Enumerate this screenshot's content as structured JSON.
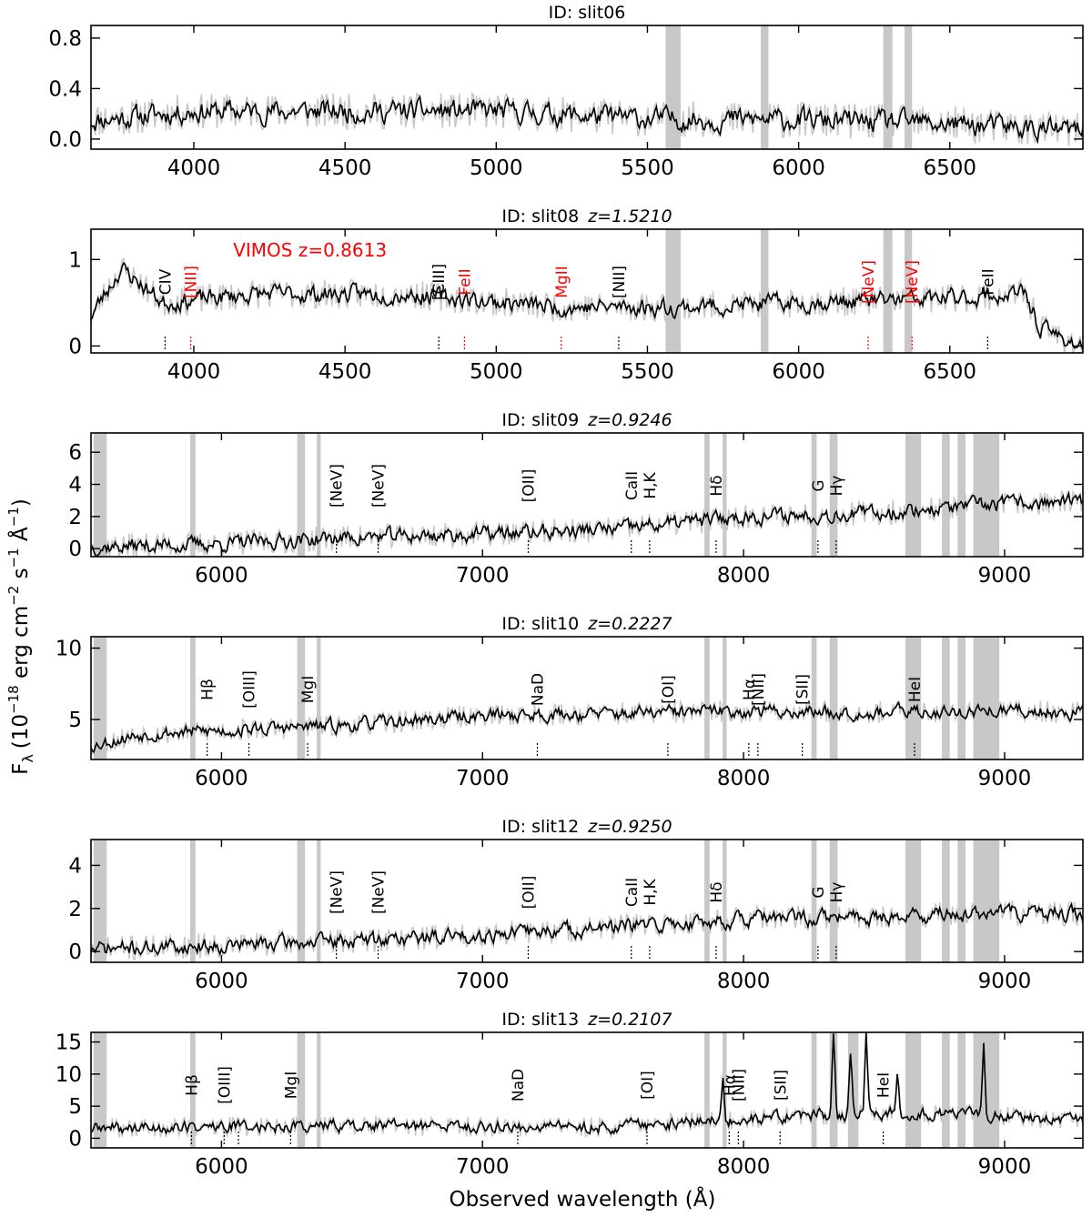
{
  "figure": {
    "ylabel": "F",
    "ylabel_sub": "λ",
    "ylabel_units": "(10",
    "ylabel_units_exp": "−18",
    "ylabel_units_rest": " erg cm",
    "ylabel_exp2": "−2",
    "ylabel_s": " s",
    "ylabel_exp1": "−1",
    "ylabel_A": " Å",
    "ylabel_exp1b": "−1",
    "ylabel_close": ")",
    "xlabel": "Observed wavelength (Å)"
  },
  "colors": {
    "spectrum": "#000000",
    "raw": "#c8c8c8",
    "band": "#c8c8c8",
    "red_label": "#ff0000",
    "black_label": "#000000"
  },
  "chart_data": [
    {
      "type": "line",
      "title_id": "ID: slit06",
      "title_z": "",
      "xlim": [
        3660,
        6940
      ],
      "ylim": [
        -0.08,
        0.9
      ],
      "xticks": [
        4000,
        4500,
        5000,
        5500,
        6000,
        6500
      ],
      "yticks": [
        0.0,
        0.4,
        0.8
      ],
      "ytick_labels": [
        "0.0",
        "0.4",
        "0.8"
      ],
      "bands": [
        [
          5560,
          5610
        ],
        [
          5875,
          5900
        ],
        [
          6280,
          6310
        ],
        [
          6350,
          6375
        ]
      ],
      "continuum": [
        [
          3660,
          0.15
        ],
        [
          4000,
          0.22
        ],
        [
          4500,
          0.22
        ],
        [
          5000,
          0.22
        ],
        [
          5500,
          0.16
        ],
        [
          6000,
          0.15
        ],
        [
          6500,
          0.12
        ],
        [
          6940,
          0.06
        ]
      ],
      "noise": 0.11,
      "seed": 11,
      "annotation": "",
      "lines": []
    },
    {
      "type": "line",
      "title_id": "ID: slit08",
      "title_z": "z=1.5210",
      "xlim": [
        3660,
        6940
      ],
      "ylim": [
        -0.08,
        1.35
      ],
      "xticks": [
        4000,
        4500,
        5000,
        5500,
        6000,
        6500
      ],
      "yticks": [
        0,
        1
      ],
      "ytick_labels": [
        "0",
        "1"
      ],
      "bands": [
        [
          5560,
          5610
        ],
        [
          5875,
          5900
        ],
        [
          6280,
          6310
        ],
        [
          6350,
          6375
        ]
      ],
      "continuum": [
        [
          3660,
          0.35
        ],
        [
          3760,
          0.9
        ],
        [
          3900,
          0.5
        ],
        [
          4200,
          0.6
        ],
        [
          4700,
          0.6
        ],
        [
          5200,
          0.45
        ],
        [
          5600,
          0.45
        ],
        [
          6000,
          0.5
        ],
        [
          6500,
          0.55
        ],
        [
          6750,
          0.6
        ],
        [
          6800,
          0.2
        ],
        [
          6940,
          0.0
        ]
      ],
      "noise": 0.13,
      "seed": 23,
      "annotation": "VIMOS z=0.8613",
      "lines": [
        {
          "label": "CIV",
          "wl": 3905,
          "color": "black"
        },
        {
          "label": "[NII]",
          "wl": 3990,
          "color": "red",
          "boxed": true
        },
        {
          "label": "[CIII]",
          "wl": 4810,
          "color": "black"
        },
        {
          "label": "FeII",
          "wl": 4895,
          "color": "red"
        },
        {
          "label": "MgII",
          "wl": 5215,
          "color": "red"
        },
        {
          "label": "[NII]",
          "wl": 5405,
          "color": "black"
        },
        {
          "label": "[NeV]",
          "wl": 6230,
          "color": "red",
          "boxed": true
        },
        {
          "label": "[NeV]",
          "wl": 6375,
          "color": "red",
          "boxed": true
        },
        {
          "label": "FeII",
          "wl": 6625,
          "color": "black"
        }
      ]
    },
    {
      "type": "line",
      "title_id": "ID: slit09",
      "title_z": "z=0.9246",
      "xlim": [
        5500,
        9300
      ],
      "ylim": [
        -0.5,
        7.2
      ],
      "xticks": [
        6000,
        7000,
        8000,
        9000
      ],
      "yticks": [
        0,
        2,
        4,
        6
      ],
      "ytick_labels": [
        "0",
        "2",
        "4",
        "6"
      ],
      "bands": [
        [
          5510,
          5560
        ],
        [
          5880,
          5900
        ],
        [
          6290,
          6320
        ],
        [
          6365,
          6380
        ],
        [
          7850,
          7870
        ],
        [
          7920,
          7935
        ],
        [
          8260,
          8280
        ],
        [
          8330,
          8360
        ],
        [
          8620,
          8680
        ],
        [
          8760,
          8790
        ],
        [
          8820,
          8850
        ],
        [
          8880,
          8980
        ]
      ],
      "continuum": [
        [
          5500,
          0.1
        ],
        [
          6000,
          0.3
        ],
        [
          6500,
          0.7
        ],
        [
          7000,
          0.9
        ],
        [
          7500,
          1.2
        ],
        [
          8000,
          2.0
        ],
        [
          8500,
          2.2
        ],
        [
          9000,
          2.8
        ],
        [
          9300,
          2.9
        ]
      ],
      "noise": 0.6,
      "seed": 37,
      "annotation": "",
      "lines": [
        {
          "label": "[NeV]",
          "wl": 6440,
          "color": "black"
        },
        {
          "label": "[NeV]",
          "wl": 6600,
          "color": "black"
        },
        {
          "label": "[OII]",
          "wl": 7175,
          "color": "black"
        },
        {
          "label": "CaII",
          "wl": 7570,
          "color": "black"
        },
        {
          "label": "H,K",
          "wl": 7640,
          "color": "black"
        },
        {
          "label": "Hδ",
          "wl": 7895,
          "color": "black"
        },
        {
          "label": "G",
          "wl": 8285,
          "color": "black"
        },
        {
          "label": "Hγ",
          "wl": 8355,
          "color": "black"
        }
      ]
    },
    {
      "type": "line",
      "title_id": "ID: slit10",
      "title_z": "z=0.2227",
      "xlim": [
        5500,
        9300
      ],
      "ylim": [
        2.2,
        10.8
      ],
      "xticks": [
        6000,
        7000,
        8000,
        9000
      ],
      "yticks": [
        5,
        10
      ],
      "ytick_labels": [
        "5",
        "10"
      ],
      "bands": [
        [
          5510,
          5560
        ],
        [
          5880,
          5900
        ],
        [
          6290,
          6320
        ],
        [
          6365,
          6380
        ],
        [
          7850,
          7870
        ],
        [
          7920,
          7935
        ],
        [
          8260,
          8280
        ],
        [
          8330,
          8360
        ],
        [
          8620,
          8680
        ],
        [
          8760,
          8790
        ],
        [
          8820,
          8850
        ],
        [
          8880,
          8980
        ]
      ],
      "continuum": [
        [
          5500,
          3.2
        ],
        [
          5700,
          4.0
        ],
        [
          6500,
          4.6
        ],
        [
          7000,
          5.3
        ],
        [
          7500,
          5.4
        ],
        [
          8000,
          5.6
        ],
        [
          8500,
          5.5
        ],
        [
          9000,
          5.6
        ],
        [
          9300,
          5.5
        ]
      ],
      "noise": 0.6,
      "seed": 53,
      "annotation": "",
      "lines": [
        {
          "label": "Hβ",
          "wl": 5945,
          "color": "black"
        },
        {
          "label": "[OIII]",
          "wl": 6105,
          "color": "black"
        },
        {
          "label": "MgI",
          "wl": 6330,
          "color": "black"
        },
        {
          "label": "NaD",
          "wl": 7210,
          "color": "black"
        },
        {
          "label": "[OI]",
          "wl": 7710,
          "color": "black"
        },
        {
          "label": "Hα",
          "wl": 8020,
          "color": "black"
        },
        {
          "label": "[NII]",
          "wl": 8055,
          "color": "black"
        },
        {
          "label": "[SII]",
          "wl": 8225,
          "color": "black"
        },
        {
          "label": "HeI",
          "wl": 8655,
          "color": "black"
        }
      ]
    },
    {
      "type": "line",
      "title_id": "ID: slit12",
      "title_z": "z=0.9250",
      "xlim": [
        5500,
        9300
      ],
      "ylim": [
        -0.5,
        5.2
      ],
      "xticks": [
        6000,
        7000,
        8000,
        9000
      ],
      "yticks": [
        0,
        2,
        4
      ],
      "ytick_labels": [
        "0",
        "2",
        "4"
      ],
      "bands": [
        [
          5510,
          5560
        ],
        [
          5880,
          5900
        ],
        [
          6290,
          6320
        ],
        [
          6365,
          6380
        ],
        [
          7850,
          7870
        ],
        [
          7920,
          7935
        ],
        [
          8260,
          8280
        ],
        [
          8330,
          8360
        ],
        [
          8620,
          8680
        ],
        [
          8760,
          8790
        ],
        [
          8820,
          8850
        ],
        [
          8880,
          8980
        ]
      ],
      "continuum": [
        [
          5500,
          0.1
        ],
        [
          6000,
          0.3
        ],
        [
          6500,
          0.5
        ],
        [
          7000,
          0.8
        ],
        [
          7500,
          1.1
        ],
        [
          8000,
          1.5
        ],
        [
          8500,
          1.6
        ],
        [
          9000,
          1.8
        ],
        [
          9300,
          1.7
        ]
      ],
      "noise": 0.45,
      "seed": 71,
      "annotation": "",
      "lines": [
        {
          "label": "[NeV]",
          "wl": 6440,
          "color": "black"
        },
        {
          "label": "[NeV]",
          "wl": 6600,
          "color": "black"
        },
        {
          "label": "[OII]",
          "wl": 7175,
          "color": "black"
        },
        {
          "label": "CaII",
          "wl": 7570,
          "color": "black"
        },
        {
          "label": "H,K",
          "wl": 7640,
          "color": "black"
        },
        {
          "label": "Hδ",
          "wl": 7895,
          "color": "black"
        },
        {
          "label": "G",
          "wl": 8285,
          "color": "black"
        },
        {
          "label": "Hγ",
          "wl": 8355,
          "color": "black"
        }
      ]
    },
    {
      "type": "line",
      "title_id": "ID: slit13",
      "title_z": "z=0.2107",
      "xlim": [
        5500,
        9300
      ],
      "ylim": [
        -1.5,
        16.5
      ],
      "xticks": [
        6000,
        7000,
        8000,
        9000
      ],
      "yticks": [
        0,
        5,
        10,
        15
      ],
      "ytick_labels": [
        "0",
        "5",
        "10",
        "15"
      ],
      "bands": [
        [
          5510,
          5560
        ],
        [
          5880,
          5900
        ],
        [
          6290,
          6320
        ],
        [
          6365,
          6380
        ],
        [
          7850,
          7870
        ],
        [
          7920,
          7935
        ],
        [
          8260,
          8280
        ],
        [
          8330,
          8360
        ],
        [
          8400,
          8440
        ],
        [
          8620,
          8680
        ],
        [
          8760,
          8790
        ],
        [
          8820,
          8850
        ],
        [
          8880,
          8980
        ]
      ],
      "continuum": [
        [
          5500,
          1.5
        ],
        [
          6000,
          1.8
        ],
        [
          6500,
          2.0
        ],
        [
          7000,
          1.8
        ],
        [
          7500,
          1.8
        ],
        [
          7800,
          2.5
        ],
        [
          8000,
          3.0
        ],
        [
          8300,
          3.5
        ],
        [
          8600,
          4.0
        ],
        [
          9000,
          3.5
        ],
        [
          9300,
          2.5
        ]
      ],
      "noise": 1.2,
      "seed": 89,
      "annotation": "",
      "spikes": [
        [
          8345,
          13
        ],
        [
          8410,
          10
        ],
        [
          8470,
          13
        ],
        [
          8920,
          11
        ],
        [
          7920,
          7
        ],
        [
          8590,
          7
        ]
      ],
      "lines": [
        {
          "label": "Hβ",
          "wl": 5885,
          "color": "black"
        },
        {
          "label": "[OIII]",
          "wl": 6010,
          "color": "black"
        },
        {
          "label": "[OIII]",
          "wl": 6065,
          "color": "black",
          "hidden_label": true
        },
        {
          "label": "MgI",
          "wl": 6265,
          "color": "black"
        },
        {
          "label": "NaD",
          "wl": 7135,
          "color": "black"
        },
        {
          "label": "[OI]",
          "wl": 7630,
          "color": "black"
        },
        {
          "label": "Hα",
          "wl": 7945,
          "color": "black"
        },
        {
          "label": "[NII]",
          "wl": 7980,
          "color": "black"
        },
        {
          "label": "[SII]",
          "wl": 8140,
          "color": "black"
        },
        {
          "label": "HeI",
          "wl": 8535,
          "color": "black"
        }
      ]
    }
  ]
}
